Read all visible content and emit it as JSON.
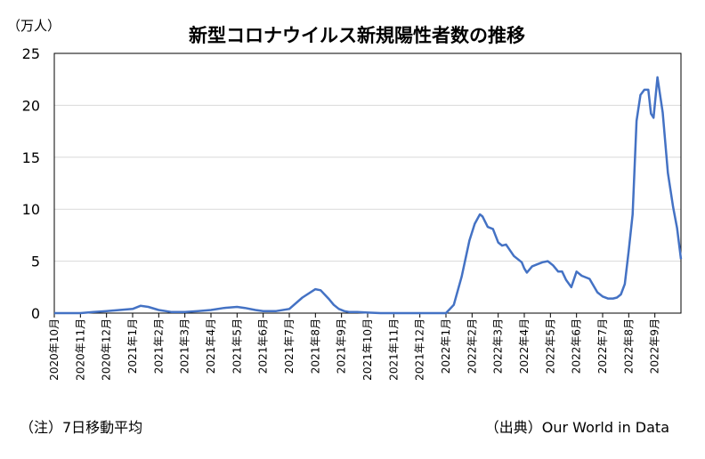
{
  "chart_data": {
    "type": "line",
    "title": "新型コロナウイルス新規陽性者数の推移",
    "unit_label": "（万人）",
    "ylim": [
      0,
      25
    ],
    "yticks": [
      0,
      5,
      10,
      15,
      20,
      25
    ],
    "grid": "horizontal",
    "line_color": "#4472C4",
    "x_tick_labels": [
      "2020年10月",
      "2020年11月",
      "2020年12月",
      "2021年1月",
      "2021年2月",
      "2021年3月",
      "2021年4月",
      "2021年5月",
      "2021年6月",
      "2021年7月",
      "2021年8月",
      "2021年9月",
      "2021年10月",
      "2021年11月",
      "2021年12月",
      "2022年1月",
      "2022年2月",
      "2022年3月",
      "2022年4月",
      "2022年5月",
      "2022年6月",
      "2022年7月",
      "2022年8月",
      "2022年9月"
    ],
    "series": [
      {
        "x": [
          0,
          1,
          1.5,
          2,
          2.5,
          3,
          3.3,
          3.6,
          4,
          4.5,
          5,
          5.5,
          6,
          6.5,
          7,
          7.3,
          7.7,
          8,
          8.5,
          9,
          9.5,
          10,
          10.2,
          10.5,
          10.7,
          10.9,
          11.1,
          11.3,
          11.6,
          12,
          12.5,
          13,
          14,
          15,
          15.3,
          15.6,
          15.9,
          16.1,
          16.3,
          16.4,
          16.6,
          16.8,
          17,
          17.15,
          17.3,
          17.6,
          17.9,
          18,
          18.1,
          18.3,
          18.5,
          18.7,
          18.9,
          19.1,
          19.3,
          19.45,
          19.6,
          19.8,
          20,
          20.2,
          20.5,
          20.8,
          21,
          21.2,
          21.4,
          21.55,
          21.7,
          21.85,
          22,
          22.15,
          22.3,
          22.45,
          22.6,
          22.75,
          22.85,
          22.95,
          23.1,
          23.3,
          23.5,
          23.7,
          23.85,
          24
        ],
        "values": [
          0,
          0,
          0.1,
          0.2,
          0.3,
          0.4,
          0.7,
          0.6,
          0.3,
          0.1,
          0.1,
          0.2,
          0.3,
          0.5,
          0.6,
          0.5,
          0.3,
          0.2,
          0.2,
          0.4,
          1.5,
          2.3,
          2.2,
          1.4,
          0.8,
          0.4,
          0.2,
          0.1,
          0.1,
          0.05,
          0,
          0,
          0,
          0,
          0.8,
          3.5,
          7,
          8.6,
          9.5,
          9.3,
          8.3,
          8.1,
          6.8,
          6.5,
          6.6,
          5.5,
          4.9,
          4.3,
          3.9,
          4.5,
          4.7,
          4.9,
          5,
          4.6,
          4.0,
          4.0,
          3.2,
          2.5,
          4.0,
          3.6,
          3.3,
          2.0,
          1.6,
          1.4,
          1.4,
          1.5,
          1.8,
          2.8,
          6,
          9.5,
          18.5,
          21,
          21.5,
          21.5,
          19.2,
          18.8,
          22.7,
          19.3,
          13.5,
          10.2,
          8.2,
          5.2
        ]
      }
    ]
  },
  "footnotes": {
    "note": "（注）7日移動平均",
    "source": "（出典）Our World in Data"
  }
}
